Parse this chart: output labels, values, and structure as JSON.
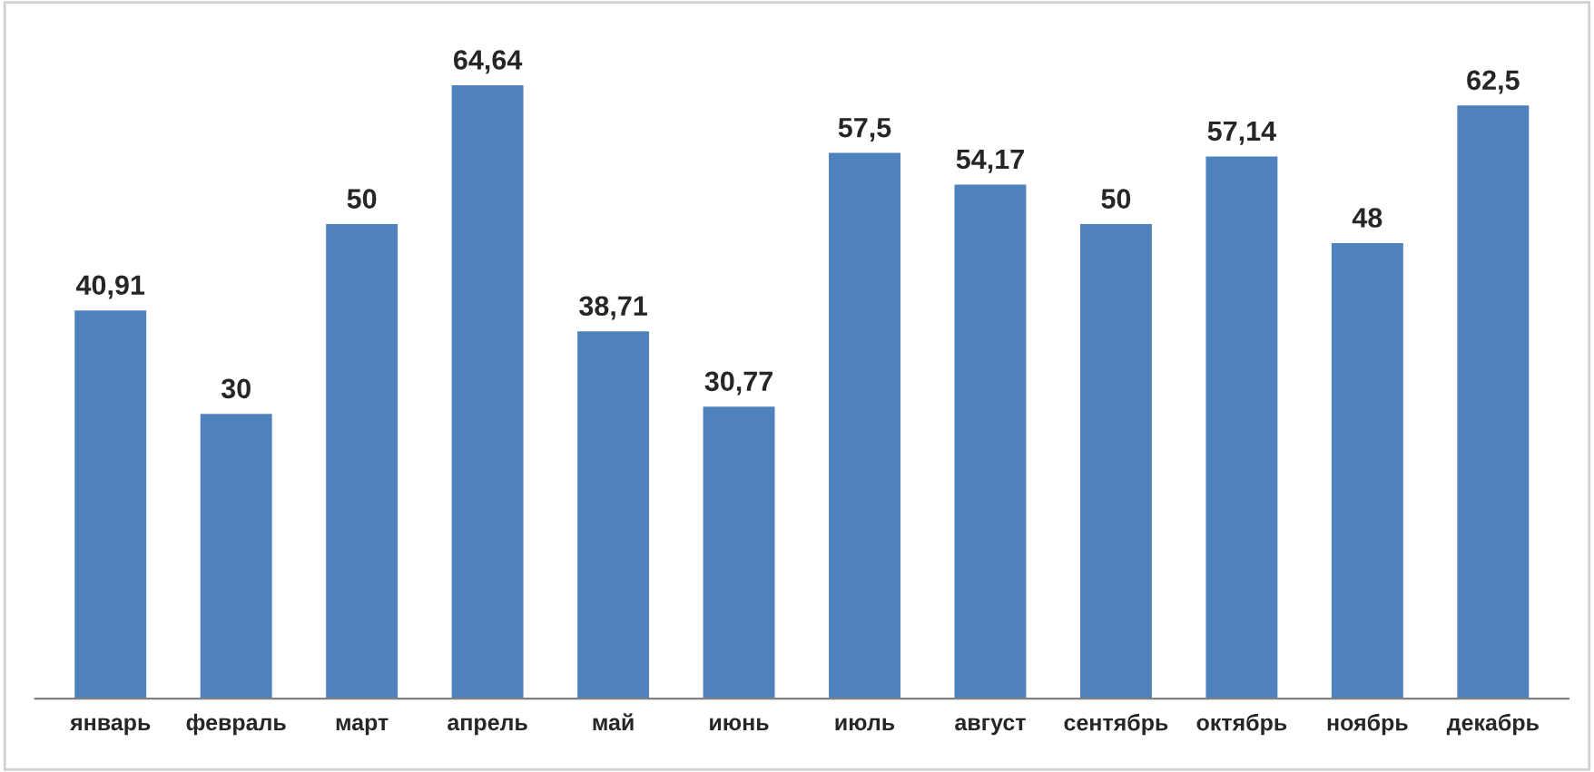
{
  "chart_data": {
    "type": "bar",
    "categories": [
      "январь",
      "февраль",
      "март",
      "апрель",
      "май",
      "июнь",
      "июль",
      "август",
      "сентябрь",
      "октябрь",
      "ноябрь",
      "декабрь"
    ],
    "values": [
      40.91,
      30,
      50,
      64.64,
      38.71,
      30.77,
      57.5,
      54.17,
      50,
      57.14,
      48,
      62.5
    ],
    "value_labels": [
      "40,91",
      "30",
      "50",
      "64,64",
      "38,71",
      "30,77",
      "57,5",
      "54,17",
      "50",
      "57,14",
      "48",
      "62,5"
    ],
    "color": "#4f81bd",
    "grid": false,
    "legend": false
  }
}
